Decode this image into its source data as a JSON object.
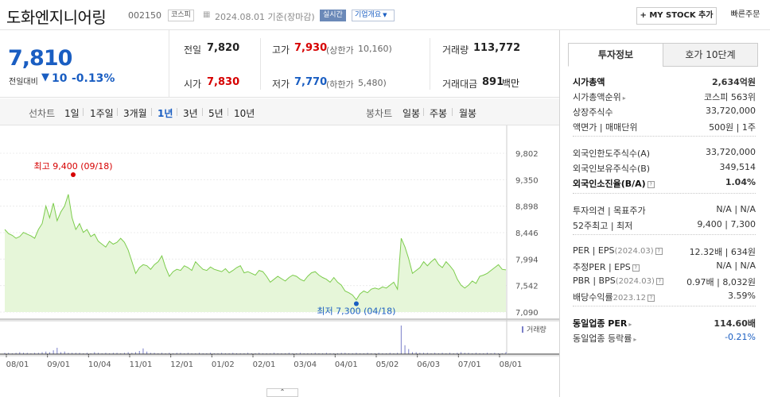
{
  "header": {
    "title": "도화엔지니어링",
    "code": "002150",
    "market": "코스피",
    "date": "2024.08.01 기준(장마감)",
    "realtime": "실시간",
    "company_info": "기업개요",
    "my_stock": "+ MY STOCK 추가",
    "quick_order": "빠른주문"
  },
  "quote": {
    "price": "7,810",
    "change_label": "전일대비",
    "change_arrow": "▼",
    "change_value": "10",
    "change_percent": "-0.13%",
    "prev_close": {
      "label": "전일",
      "value": "7,820"
    },
    "high": {
      "label": "고가",
      "value": "7,930",
      "limit_label": "(상한가",
      "limit_value": "10,160)"
    },
    "volume": {
      "label": "거래량",
      "value": "113,772"
    },
    "open": {
      "label": "시가",
      "value": "7,830"
    },
    "low": {
      "label": "저가",
      "value": "7,770",
      "limit_label": "(하한가",
      "limit_value": "5,480)"
    },
    "amount": {
      "label": "거래대금",
      "value": "891",
      "unit": "백만"
    }
  },
  "chart_tabs": {
    "line_label": "선차트",
    "line": [
      "1일",
      "1주일",
      "3개월",
      "1년",
      "3년",
      "5년",
      "10년"
    ],
    "active": "1년",
    "candle_label": "봉차트",
    "candle": [
      "일봉",
      "주봉",
      "월봉"
    ]
  },
  "chart_data": {
    "type": "line",
    "y_ticks": [
      "9,802",
      "9,350",
      "8,898",
      "8,446",
      "7,994",
      "7,542",
      "7,090"
    ],
    "ylim": [
      7090,
      9802
    ],
    "x_ticks": [
      "08/01",
      "09/01",
      "10/04",
      "11/01",
      "12/01",
      "01/02",
      "02/01",
      "03/04",
      "04/01",
      "05/02",
      "06/03",
      "07/01",
      "08/01"
    ],
    "high_label": "최고 9,400 (09/18)",
    "low_label": "최저 7,300 (04/18)",
    "volume_label": "거래량",
    "values": [
      8500,
      8430,
      8400,
      8350,
      8380,
      8450,
      8420,
      8390,
      8350,
      8500,
      8600,
      8900,
      8700,
      8950,
      8650,
      8800,
      8900,
      9100,
      8700,
      8500,
      8600,
      8450,
      8500,
      8380,
      8420,
      8300,
      8250,
      8200,
      8300,
      8250,
      8280,
      8350,
      8280,
      8150,
      7950,
      7750,
      7850,
      7900,
      7880,
      7820,
      7900,
      7950,
      8050,
      7850,
      7700,
      7780,
      7820,
      7800,
      7880,
      7850,
      7800,
      7950,
      7880,
      7820,
      7800,
      7860,
      7820,
      7800,
      7780,
      7830,
      7760,
      7800,
      7850,
      7880,
      7760,
      7780,
      7750,
      7720,
      7800,
      7780,
      7700,
      7600,
      7650,
      7700,
      7660,
      7620,
      7680,
      7720,
      7700,
      7650,
      7620,
      7700,
      7760,
      7780,
      7720,
      7680,
      7650,
      7600,
      7680,
      7600,
      7550,
      7450,
      7420,
      7380,
      7300,
      7400,
      7450,
      7420,
      7480,
      7500,
      7480,
      7520,
      7500,
      7550,
      7600,
      7480,
      8350,
      8200,
      8000,
      7750,
      7800,
      7850,
      7950,
      7880,
      7950,
      8000,
      7900,
      7850,
      7950,
      7880,
      7800,
      7650,
      7550,
      7500,
      7550,
      7620,
      7580,
      7700,
      7720,
      7750,
      7800,
      7850,
      7900,
      7820,
      7810
    ],
    "volumes": [
      2,
      2,
      1,
      2,
      3,
      2,
      2,
      1,
      2,
      2,
      3,
      4,
      3,
      6,
      10,
      3,
      4,
      2,
      2,
      2,
      2,
      1,
      2,
      1,
      3,
      2,
      1,
      2,
      1,
      2,
      2,
      1,
      2,
      3,
      2,
      3,
      5,
      9,
      4,
      2,
      2,
      1,
      2,
      1,
      2,
      1,
      2,
      2,
      1,
      2,
      1,
      1,
      2,
      1,
      1,
      2,
      1,
      1,
      2,
      1,
      1,
      2,
      1,
      1,
      1,
      2,
      1,
      1,
      2,
      1,
      1,
      1,
      2,
      1,
      1,
      1,
      2,
      1,
      1,
      2,
      1,
      1,
      1,
      2,
      1,
      1,
      2,
      1,
      1,
      1,
      2,
      2,
      1,
      1,
      2,
      1,
      1,
      2,
      1,
      1,
      2,
      1,
      1,
      2,
      1,
      2,
      45,
      14,
      8,
      3,
      3,
      2,
      2,
      2,
      1,
      2,
      1,
      2,
      1,
      2,
      1,
      2,
      3,
      2,
      2,
      1,
      2,
      1,
      1,
      2,
      1,
      2,
      1,
      1,
      3
    ]
  },
  "sidebar": {
    "tab_invest": "투자정보",
    "tab_hoga": "호가 10단계",
    "market_cap": {
      "label": "시가총액",
      "value": "2,634억원"
    },
    "market_cap_rank": {
      "label": "시가총액순위",
      "value": "코스피 563위"
    },
    "listed_shares": {
      "label": "상장주식수",
      "value": "33,720,000"
    },
    "par_value": {
      "label": "액면가 | 매매단위",
      "value": "500원 | 1주"
    },
    "foreign_limit": {
      "label": "외국인한도주식수(A)",
      "value": "33,720,000"
    },
    "foreign_hold": {
      "label": "외국인보유주식수(B)",
      "value": "349,514"
    },
    "foreign_ratio": {
      "label": "외국인소진율(B/A)",
      "value": "1.04%"
    },
    "opinion": {
      "label": "투자의견 | 목표주가",
      "value": "N/A | N/A"
    },
    "week52": {
      "label": "52주최고 | 최저",
      "value": "9,400 | 7,300"
    },
    "per_eps": {
      "label": "PER | EPS",
      "sub": "(2024.03)",
      "value": "12.32배 | 634원"
    },
    "est_per": {
      "label": "추정PER | EPS",
      "value": "N/A | N/A"
    },
    "pbr_bps": {
      "label": "PBR | BPS",
      "sub": "(2024.03)",
      "value": "0.97배 | 8,032원"
    },
    "dividend": {
      "label": "배당수익률",
      "sub": "2023.12",
      "value": "3.59%"
    },
    "industry_per": {
      "label": "동일업종 PER",
      "value": "114.60배"
    },
    "industry_rate": {
      "label": "동일업종 등락률",
      "value": "-0.21%"
    }
  }
}
